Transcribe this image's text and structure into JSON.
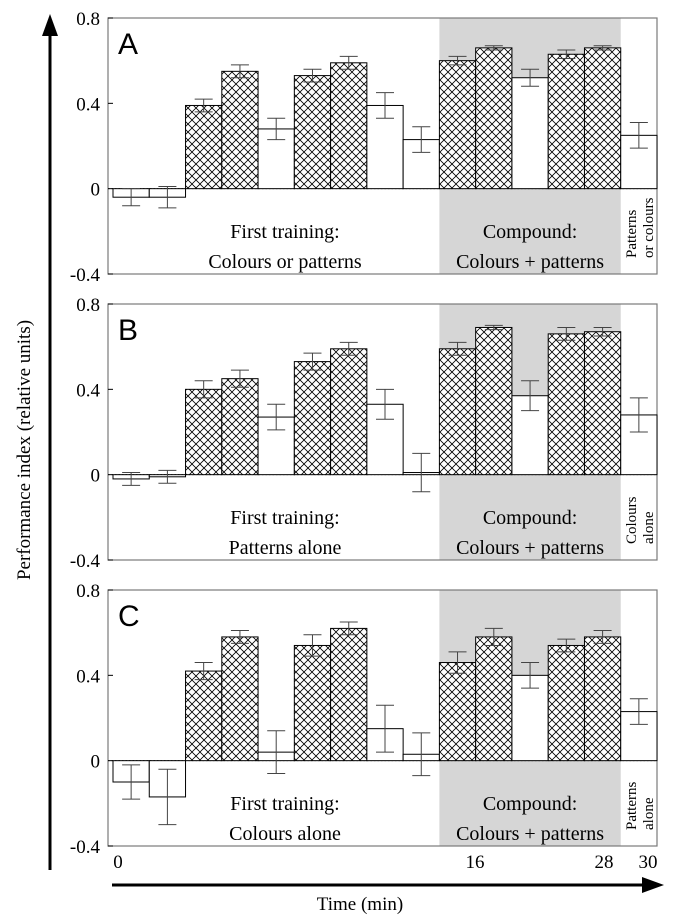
{
  "figure": {
    "ylabel": "Performance index (relative units)",
    "xlabel": "Time (min)",
    "x_ticks": [
      "0",
      "16",
      "28",
      "30"
    ]
  },
  "chart_data": [
    {
      "type": "bar",
      "panel_label": "A",
      "ylim": [
        -0.4,
        0.8
      ],
      "y_ticks": [
        "0.8",
        "0.4",
        "0",
        "-0.4"
      ],
      "grid": false,
      "x_range": [
        0,
        30
      ],
      "bars": [
        {
          "x": 1,
          "value": -0.04,
          "err": 0.04,
          "pattern": "plain"
        },
        {
          "x": 3,
          "value": -0.04,
          "err": 0.05,
          "pattern": "plain"
        },
        {
          "x": 5,
          "value": 0.39,
          "err": 0.03,
          "pattern": "hatched"
        },
        {
          "x": 7,
          "value": 0.55,
          "err": 0.03,
          "pattern": "hatched"
        },
        {
          "x": 9,
          "value": 0.28,
          "err": 0.05,
          "pattern": "plain"
        },
        {
          "x": 11,
          "value": 0.53,
          "err": 0.03,
          "pattern": "hatched"
        },
        {
          "x": 13,
          "value": 0.59,
          "err": 0.03,
          "pattern": "hatched"
        },
        {
          "x": 15,
          "value": 0.39,
          "err": 0.06,
          "pattern": "plain"
        },
        {
          "x": 17,
          "value": 0.23,
          "err": 0.06,
          "pattern": "plain"
        },
        {
          "x": 19,
          "value": 0.6,
          "err": 0.02,
          "pattern": "hatched"
        },
        {
          "x": 21,
          "value": 0.66,
          "err": 0.01,
          "pattern": "hatched"
        },
        {
          "x": 23,
          "value": 0.52,
          "err": 0.04,
          "pattern": "plain"
        },
        {
          "x": 25,
          "value": 0.63,
          "err": 0.02,
          "pattern": "hatched"
        },
        {
          "x": 27,
          "value": 0.66,
          "err": 0.01,
          "pattern": "hatched"
        },
        {
          "x": 29,
          "value": 0.25,
          "err": 0.06,
          "pattern": "plain"
        }
      ],
      "shaded_region": [
        18,
        28
      ],
      "annotations": {
        "left": [
          "First training:",
          "Colours or patterns"
        ],
        "middle": [
          "Compound:",
          "Colours + patterns"
        ],
        "right": [
          "Patterns",
          "or colours"
        ]
      }
    },
    {
      "type": "bar",
      "panel_label": "B",
      "ylim": [
        -0.4,
        0.8
      ],
      "y_ticks": [
        "0.8",
        "0.4",
        "0",
        "-0.4"
      ],
      "grid": false,
      "x_range": [
        0,
        30
      ],
      "bars": [
        {
          "x": 1,
          "value": -0.02,
          "err": 0.03,
          "pattern": "plain"
        },
        {
          "x": 3,
          "value": -0.01,
          "err": 0.03,
          "pattern": "plain"
        },
        {
          "x": 5,
          "value": 0.4,
          "err": 0.04,
          "pattern": "hatched"
        },
        {
          "x": 7,
          "value": 0.45,
          "err": 0.04,
          "pattern": "hatched"
        },
        {
          "x": 9,
          "value": 0.27,
          "err": 0.06,
          "pattern": "plain"
        },
        {
          "x": 11,
          "value": 0.53,
          "err": 0.04,
          "pattern": "hatched"
        },
        {
          "x": 13,
          "value": 0.59,
          "err": 0.03,
          "pattern": "hatched"
        },
        {
          "x": 15,
          "value": 0.33,
          "err": 0.07,
          "pattern": "plain"
        },
        {
          "x": 17,
          "value": 0.01,
          "err": 0.09,
          "pattern": "plain"
        },
        {
          "x": 19,
          "value": 0.59,
          "err": 0.03,
          "pattern": "hatched"
        },
        {
          "x": 21,
          "value": 0.69,
          "err": 0.01,
          "pattern": "hatched"
        },
        {
          "x": 23,
          "value": 0.37,
          "err": 0.07,
          "pattern": "plain"
        },
        {
          "x": 25,
          "value": 0.66,
          "err": 0.03,
          "pattern": "hatched"
        },
        {
          "x": 27,
          "value": 0.67,
          "err": 0.02,
          "pattern": "hatched"
        },
        {
          "x": 29,
          "value": 0.28,
          "err": 0.08,
          "pattern": "plain"
        }
      ],
      "shaded_region": [
        18,
        28
      ],
      "annotations": {
        "left": [
          "First training:",
          "Patterns alone"
        ],
        "middle": [
          "Compound:",
          "Colours + patterns"
        ],
        "right": [
          "Colours",
          "alone"
        ]
      }
    },
    {
      "type": "bar",
      "panel_label": "C",
      "ylim": [
        -0.4,
        0.8
      ],
      "y_ticks": [
        "0.8",
        "0.4",
        "0",
        "-0.4"
      ],
      "grid": false,
      "x_range": [
        0,
        30
      ],
      "bars": [
        {
          "x": 1,
          "value": -0.1,
          "err": 0.08,
          "pattern": "plain"
        },
        {
          "x": 3,
          "value": -0.17,
          "err": 0.13,
          "pattern": "plain"
        },
        {
          "x": 5,
          "value": 0.42,
          "err": 0.04,
          "pattern": "hatched"
        },
        {
          "x": 7,
          "value": 0.58,
          "err": 0.03,
          "pattern": "hatched"
        },
        {
          "x": 9,
          "value": 0.04,
          "err": 0.1,
          "pattern": "plain"
        },
        {
          "x": 11,
          "value": 0.54,
          "err": 0.05,
          "pattern": "hatched"
        },
        {
          "x": 13,
          "value": 0.62,
          "err": 0.03,
          "pattern": "hatched"
        },
        {
          "x": 15,
          "value": 0.15,
          "err": 0.11,
          "pattern": "plain"
        },
        {
          "x": 17,
          "value": 0.03,
          "err": 0.1,
          "pattern": "plain"
        },
        {
          "x": 19,
          "value": 0.46,
          "err": 0.05,
          "pattern": "hatched"
        },
        {
          "x": 21,
          "value": 0.58,
          "err": 0.04,
          "pattern": "hatched"
        },
        {
          "x": 23,
          "value": 0.4,
          "err": 0.06,
          "pattern": "plain"
        },
        {
          "x": 25,
          "value": 0.54,
          "err": 0.03,
          "pattern": "hatched"
        },
        {
          "x": 27,
          "value": 0.58,
          "err": 0.03,
          "pattern": "hatched"
        },
        {
          "x": 29,
          "value": 0.23,
          "err": 0.06,
          "pattern": "plain"
        }
      ],
      "shaded_region": [
        18,
        28
      ],
      "annotations": {
        "left": [
          "First training:",
          "Colours alone"
        ],
        "middle": [
          "Compound:",
          "Colours + patterns"
        ],
        "right": [
          "Patterns",
          "alone"
        ]
      }
    }
  ],
  "colors": {
    "shaded": "#d6d6d6",
    "frame": "#7a7a7a",
    "ink": "#000000",
    "bar_fill": "#ffffff",
    "errbar": "#444444"
  }
}
